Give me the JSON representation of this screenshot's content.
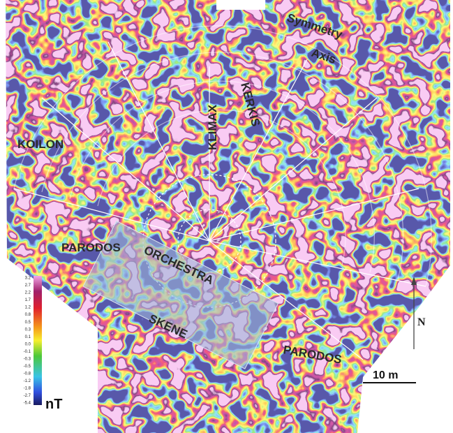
{
  "labels": [
    "Symmetry",
    "Axis",
    "KLIMAX",
    "KERKIS",
    "KOILON",
    "PARODOS",
    "ORCHESTRA",
    "SKENE",
    "PARODOS"
  ],
  "north": "N",
  "scale_bar": "10 m",
  "legend": {
    "unit": "nT",
    "ticks": [
      "3.2",
      "2.7",
      "2.2",
      "1.7",
      "1.2",
      "0.8",
      "0.5",
      "0.3",
      "0.1",
      "0.0",
      "-0.1",
      "-0.3",
      "-0.5",
      "-0.8",
      "-1.2",
      "-1.8",
      "-2.7",
      "-5.4"
    ]
  }
}
